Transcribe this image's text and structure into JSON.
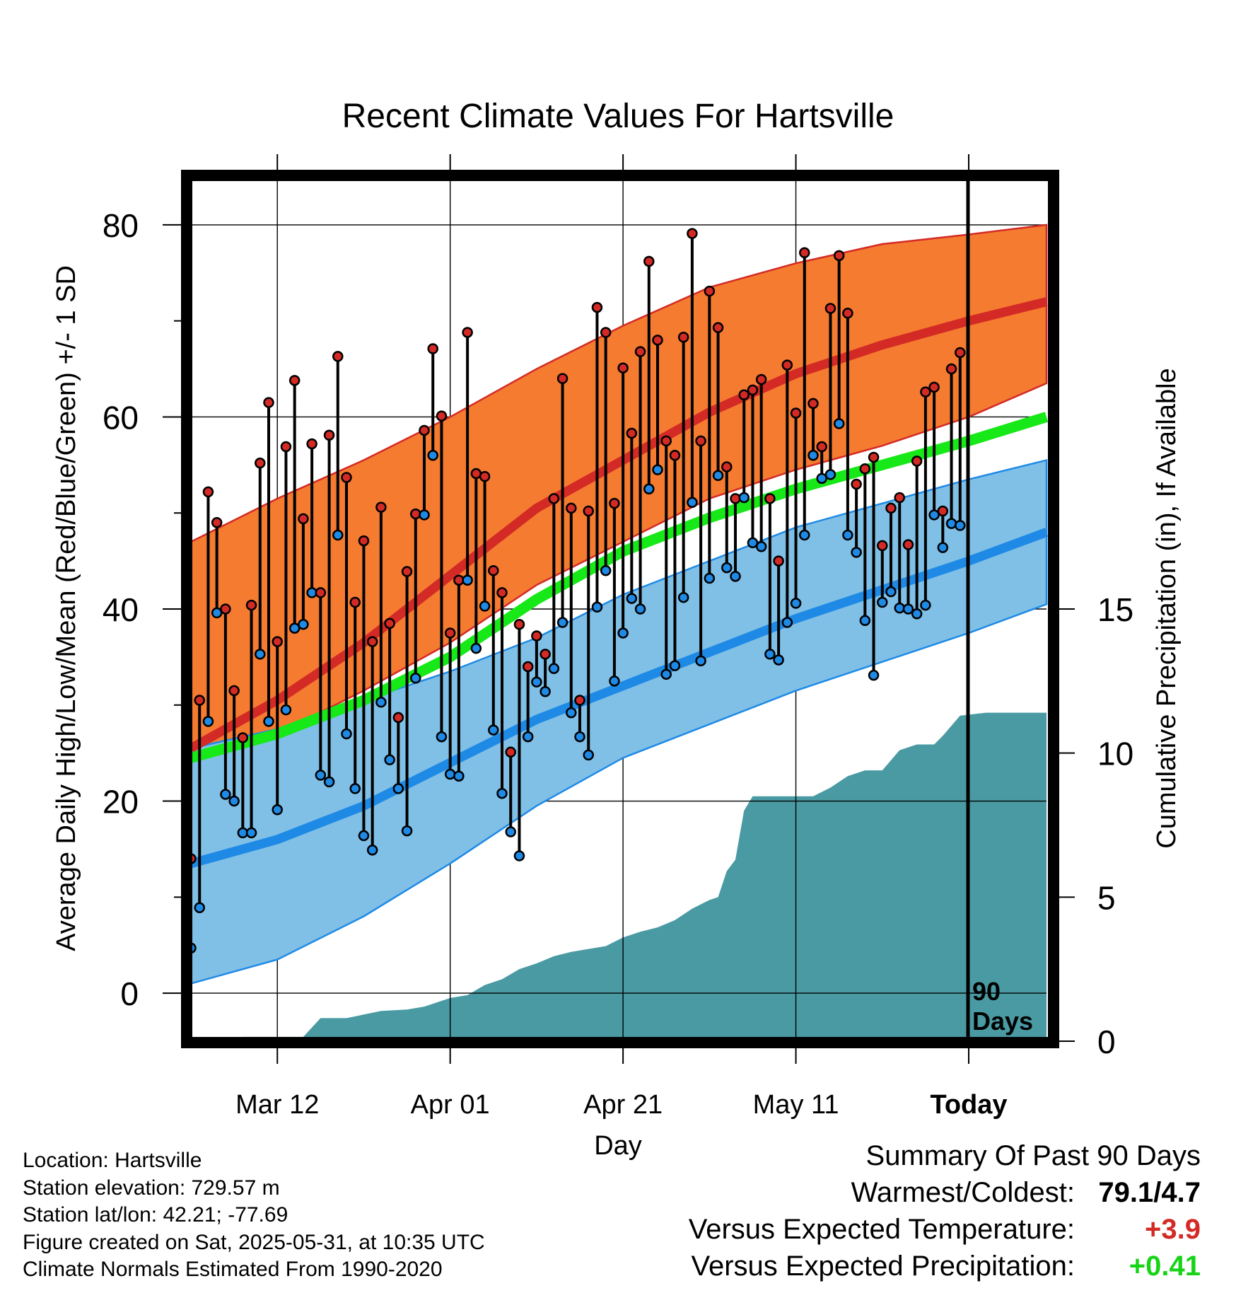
{
  "chart_data": {
    "type": "line",
    "title": "Recent Climate Values For Hartsville",
    "xlabel": "Day",
    "ylabel": "Average Daily High/Low/Mean (Red/Blue/Green) +/- 1 SD",
    "y2label": "Cumulative Precipitation (in), If Available",
    "ylim": [
      -5,
      85
    ],
    "y2lim": [
      0,
      30
    ],
    "yticks": [
      "0",
      "20",
      "40",
      "60",
      "80"
    ],
    "y2ticks": [
      "0",
      "5",
      "10",
      "15"
    ],
    "x_tick_labels": [
      "Mar 12",
      "Apr 01",
      "Apr 21",
      "May 11",
      "Today"
    ],
    "x_tick_days": [
      10,
      30,
      50,
      70,
      90
    ],
    "days_annotation": [
      "90",
      "Days"
    ],
    "grid": true,
    "colors": {
      "high_band": "#f47b30",
      "high_band_edge": "#d42a26",
      "high_mean": "#d42a26",
      "low_band": "#80c0e6",
      "low_band_edge": "#1e8ae6",
      "low_mean": "#1e8ae6",
      "mean_line": "#17e817",
      "precip": "#4a9aa3",
      "obs_high": "#d42a26",
      "obs_low": "#1e8ae6"
    },
    "normals": {
      "day": [
        0,
        10,
        20,
        30,
        40,
        50,
        60,
        70,
        80,
        90,
        99
      ],
      "high_mean": [
        25.5,
        30.5,
        36.5,
        43.5,
        50.5,
        55.5,
        60.5,
        64.5,
        67.5,
        70.0,
        72.0
      ],
      "low_mean": [
        13.5,
        16.0,
        19.5,
        24.0,
        28.5,
        32.0,
        35.5,
        39.0,
        42.0,
        45.0,
        48.0
      ],
      "normal_mean": [
        24.5,
        27.0,
        30.5,
        35.0,
        41.0,
        46.0,
        49.5,
        52.5,
        55.0,
        57.5,
        60.0
      ],
      "high_upper": [
        47.0,
        51.5,
        55.5,
        60.0,
        65.0,
        69.5,
        73.5,
        76.0,
        78.0,
        79.0,
        80.0
      ],
      "high_lower": [
        22.5,
        27.0,
        31.5,
        36.5,
        42.5,
        47.0,
        51.5,
        54.5,
        57.0,
        60.0,
        63.5
      ],
      "low_upper": [
        25.5,
        27.5,
        30.5,
        33.5,
        37.0,
        41.5,
        45.0,
        48.5,
        51.0,
        53.5,
        55.5
      ],
      "low_lower": [
        1.0,
        3.5,
        8.0,
        13.5,
        19.5,
        24.5,
        28.0,
        31.5,
        34.5,
        37.5,
        40.5
      ]
    },
    "observations": {
      "day": [
        0,
        1,
        2,
        3,
        4,
        5,
        6,
        7,
        8,
        9,
        10,
        11,
        12,
        13,
        14,
        15,
        16,
        17,
        18,
        19,
        20,
        21,
        22,
        23,
        24,
        25,
        26,
        27,
        28,
        29,
        30,
        31,
        32,
        33,
        34,
        35,
        36,
        37,
        38,
        39,
        40,
        41,
        42,
        43,
        44,
        45,
        46,
        47,
        48,
        49,
        50,
        51,
        52,
        53,
        54,
        55,
        56,
        57,
        58,
        59,
        60,
        61,
        62,
        63,
        64,
        65,
        66,
        67,
        68,
        69,
        70,
        71,
        72,
        73,
        74,
        75,
        76,
        77,
        78,
        79,
        80,
        81,
        82,
        83,
        84,
        85,
        86,
        87,
        88,
        89
      ],
      "high": [
        14,
        30.5,
        52.2,
        49,
        40,
        31.5,
        26.6,
        40.4,
        55.2,
        61.5,
        36.6,
        56.9,
        63.8,
        49.4,
        57.2,
        41.7,
        58.1,
        66.3,
        53.7,
        40.7,
        47.1,
        36.6,
        50.6,
        38.5,
        28.7,
        43.9,
        49.9,
        58.6,
        67.1,
        60.1,
        37.5,
        43,
        68.8,
        54.1,
        53.8,
        44,
        41.7,
        25.1,
        38.4,
        34,
        37.2,
        35.3,
        51.5,
        64,
        50.5,
        30.5,
        50.2,
        71.4,
        68.8,
        51,
        65.1,
        58.3,
        66.8,
        76.2,
        68,
        57.5,
        56,
        68.3,
        79.1,
        57.5,
        73.1,
        69.3,
        54.8,
        51.5,
        62.3,
        62.8,
        63.9,
        51.5,
        45,
        65.4,
        60.4,
        77.1,
        61.4,
        56.9,
        71.3,
        76.8,
        70.8,
        53,
        54.6,
        55.8,
        46.6,
        50.5,
        51.6,
        46.7,
        55.4,
        62.6,
        63.1,
        50.2,
        65,
        66.7
      ],
      "low": [
        4.7,
        8.9,
        28.3,
        39.6,
        20.7,
        20,
        16.7,
        16.7,
        35.3,
        28.3,
        19.1,
        29.5,
        38,
        38.4,
        41.7,
        22.7,
        22,
        47.7,
        27,
        21.3,
        16.4,
        14.9,
        30.3,
        24.3,
        21.3,
        16.9,
        32.8,
        49.8,
        56,
        26.7,
        22.8,
        22.6,
        43,
        35.9,
        40.3,
        27.4,
        20.8,
        16.8,
        14.3,
        26.7,
        32.4,
        31.4,
        33.8,
        38.6,
        29.2,
        26.7,
        24.8,
        40.2,
        44,
        32.5,
        37.5,
        41.1,
        40,
        52.5,
        54.5,
        33.2,
        34.1,
        41.2,
        51.1,
        34.6,
        43.2,
        53.9,
        44.3,
        43.4,
        51.6,
        46.9,
        46.5,
        35.3,
        34.7,
        38.6,
        40.6,
        47.7,
        56,
        53.6,
        54,
        59.3,
        47.7,
        45.9,
        38.8,
        33.1,
        40.7,
        41.8,
        40.1,
        40,
        39.5,
        40.4,
        49.8,
        46.4,
        48.9,
        48.7
      ]
    },
    "precipitation": {
      "day": [
        0,
        3,
        6,
        9,
        13,
        15,
        18,
        22,
        25,
        27,
        30,
        32,
        34,
        36,
        38,
        40,
        42,
        44,
        46,
        48,
        50,
        52,
        54,
        56,
        58,
        60,
        61,
        62,
        63,
        64,
        65,
        67,
        70,
        72,
        74,
        76,
        78,
        80,
        82,
        84,
        86,
        87,
        89,
        92,
        95,
        99
      ],
      "cumulative": [
        0,
        0.1,
        0.15,
        0.15,
        0.15,
        0.8,
        0.8,
        1.05,
        1.1,
        1.2,
        1.5,
        1.6,
        1.95,
        2.15,
        2.5,
        2.7,
        2.95,
        3.1,
        3.2,
        3.3,
        3.6,
        3.8,
        3.95,
        4.2,
        4.6,
        4.9,
        5,
        5.9,
        6.3,
        8.0,
        8.5,
        8.5,
        8.5,
        8.5,
        8.8,
        9.2,
        9.4,
        9.4,
        10.1,
        10.3,
        10.3,
        10.6,
        11.3,
        11.4,
        11.4,
        11.4
      ]
    }
  },
  "location": {
    "location_line": "Location: Hartsville",
    "elevation_line": "Station elevation: 729.57 m",
    "latlon_line": "Station lat/lon: 42.21; -77.69",
    "created_line": "Figure created on Sat, 2025-05-31, at 10:35 UTC",
    "normals_line": "Climate Normals Estimated From 1990-2020"
  },
  "summary": {
    "heading": "Summary Of Past 90 Days",
    "warmest_label": "Warmest/Coldest:",
    "warmest_value": "79.1/4.7",
    "temp_label": "Versus Expected Temperature:",
    "temp_value": "+3.9",
    "temp_color": "#d42a26",
    "precip_label": "Versus Expected Precipitation:",
    "precip_value": "+0.41",
    "precip_color": "#17d417"
  }
}
